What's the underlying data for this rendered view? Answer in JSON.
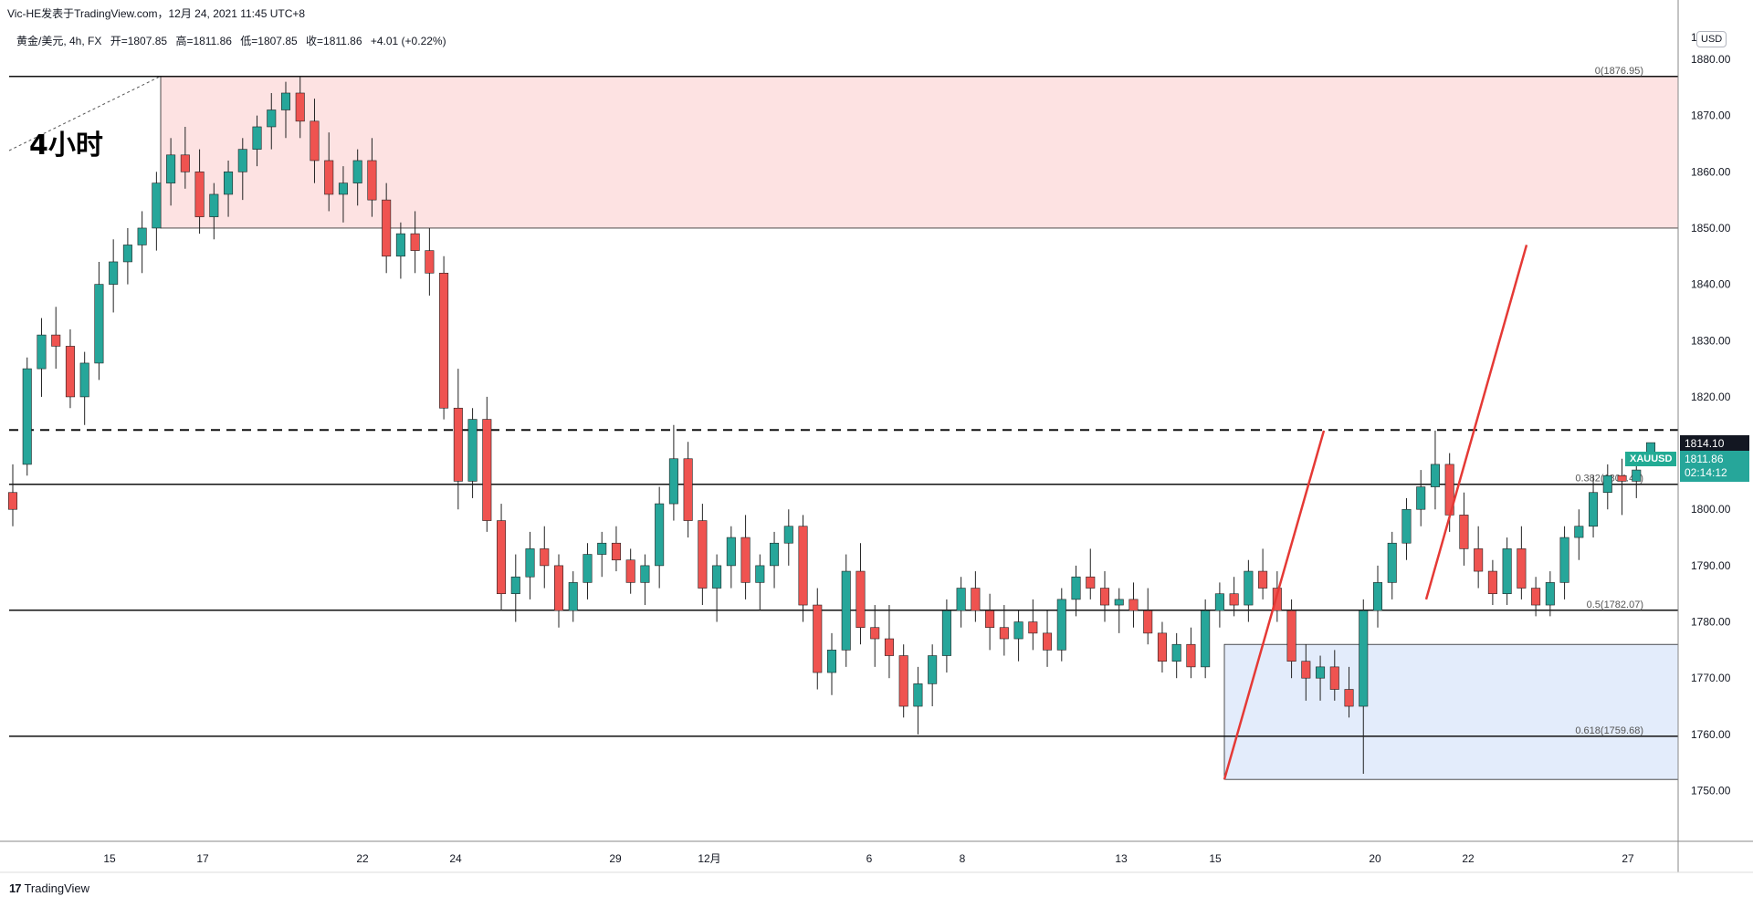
{
  "header": {
    "attribution": "Vic-HE发表于TradingView.com，12月 24, 2021 11:45 UTC+8"
  },
  "legend": {
    "symbol": "黄金/美元, 4h, FX",
    "open": "开=1807.85",
    "high": "高=1811.86",
    "low": "低=1807.85",
    "close": "收=1811.86",
    "change": "+4.01 (+0.22%)"
  },
  "annotation": {
    "timeframe": "4小时"
  },
  "axis": {
    "currency": "USD",
    "top_partial": "18",
    "price_ticks": [
      "1880.00",
      "1870.00",
      "1860.00",
      "1850.00",
      "1840.00",
      "1830.00",
      "1820.00",
      "1810.00",
      "1800.00",
      "1790.00",
      "1780.00",
      "1770.00",
      "1760.00",
      "1750.00"
    ],
    "date_ticks": [
      "15",
      "17",
      "22",
      "24",
      "29",
      "12月",
      "6",
      "8",
      "13",
      "15",
      "20",
      "22",
      "27"
    ]
  },
  "price_tags": {
    "symbol": "XAUUSD",
    "last_price": "1811.86",
    "countdown": "02:14:12",
    "level": "1814.10"
  },
  "footer": {
    "brand": "TradingView"
  },
  "chart_data": {
    "type": "candlestick",
    "symbol": "XAUUSD",
    "interval": "4h",
    "ylim": [
      1741,
      1886
    ],
    "candles": [
      [
        1803,
        1808,
        1797,
        1800
      ],
      [
        1808,
        1827,
        1806,
        1825
      ],
      [
        1825,
        1834,
        1820,
        1831
      ],
      [
        1831,
        1836,
        1825,
        1829
      ],
      [
        1829,
        1832,
        1818,
        1820
      ],
      [
        1820,
        1828,
        1815,
        1826
      ],
      [
        1826,
        1844,
        1823,
        1840
      ],
      [
        1840,
        1848,
        1835,
        1844
      ],
      [
        1844,
        1850,
        1840,
        1847
      ],
      [
        1847,
        1853,
        1842,
        1850
      ],
      [
        1850,
        1860,
        1846,
        1858
      ],
      [
        1858,
        1866,
        1854,
        1863
      ],
      [
        1863,
        1868,
        1857,
        1860
      ],
      [
        1860,
        1864,
        1849,
        1852
      ],
      [
        1852,
        1858,
        1848,
        1856
      ],
      [
        1856,
        1862,
        1852,
        1860
      ],
      [
        1860,
        1866,
        1855,
        1864
      ],
      [
        1864,
        1870,
        1861,
        1868
      ],
      [
        1868,
        1874,
        1864,
        1871
      ],
      [
        1871,
        1876,
        1866,
        1874
      ],
      [
        1874,
        1877,
        1866,
        1869
      ],
      [
        1869,
        1873,
        1858,
        1862
      ],
      [
        1862,
        1867,
        1853,
        1856
      ],
      [
        1856,
        1861,
        1851,
        1858
      ],
      [
        1858,
        1864,
        1854,
        1862
      ],
      [
        1862,
        1866,
        1852,
        1855
      ],
      [
        1855,
        1858,
        1842,
        1845
      ],
      [
        1845,
        1851,
        1841,
        1849
      ],
      [
        1849,
        1853,
        1842,
        1846
      ],
      [
        1846,
        1850,
        1838,
        1842
      ],
      [
        1842,
        1845,
        1816,
        1818
      ],
      [
        1818,
        1825,
        1800,
        1805
      ],
      [
        1805,
        1818,
        1802,
        1816
      ],
      [
        1816,
        1820,
        1796,
        1798
      ],
      [
        1798,
        1801,
        1782,
        1785
      ],
      [
        1785,
        1792,
        1780,
        1788
      ],
      [
        1788,
        1796,
        1784,
        1793
      ],
      [
        1793,
        1797,
        1786,
        1790
      ],
      [
        1790,
        1792,
        1779,
        1782
      ],
      [
        1782,
        1789,
        1780,
        1787
      ],
      [
        1787,
        1794,
        1784,
        1792
      ],
      [
        1792,
        1796,
        1788,
        1794
      ],
      [
        1794,
        1797,
        1789,
        1791
      ],
      [
        1791,
        1793,
        1785,
        1787
      ],
      [
        1787,
        1792,
        1783,
        1790
      ],
      [
        1790,
        1804,
        1786,
        1801
      ],
      [
        1801,
        1815,
        1798,
        1809
      ],
      [
        1809,
        1812,
        1795,
        1798
      ],
      [
        1798,
        1801,
        1783,
        1786
      ],
      [
        1786,
        1792,
        1780,
        1790
      ],
      [
        1790,
        1797,
        1786,
        1795
      ],
      [
        1795,
        1799,
        1784,
        1787
      ],
      [
        1787,
        1792,
        1782,
        1790
      ],
      [
        1790,
        1796,
        1786,
        1794
      ],
      [
        1794,
        1800,
        1790,
        1797
      ],
      [
        1797,
        1799,
        1780,
        1783
      ],
      [
        1783,
        1786,
        1768,
        1771
      ],
      [
        1771,
        1778,
        1767,
        1775
      ],
      [
        1775,
        1792,
        1772,
        1789
      ],
      [
        1789,
        1794,
        1776,
        1779
      ],
      [
        1779,
        1783,
        1772,
        1777
      ],
      [
        1777,
        1783,
        1770,
        1774
      ],
      [
        1774,
        1776,
        1763,
        1765
      ],
      [
        1765,
        1772,
        1760,
        1769
      ],
      [
        1769,
        1776,
        1765,
        1774
      ],
      [
        1774,
        1784,
        1771,
        1782
      ],
      [
        1782,
        1788,
        1779,
        1786
      ],
      [
        1786,
        1789,
        1780,
        1782
      ],
      [
        1782,
        1785,
        1775,
        1779
      ],
      [
        1779,
        1783,
        1774,
        1777
      ],
      [
        1777,
        1782,
        1773,
        1780
      ],
      [
        1780,
        1784,
        1775,
        1778
      ],
      [
        1778,
        1782,
        1772,
        1775
      ],
      [
        1775,
        1786,
        1773,
        1784
      ],
      [
        1784,
        1790,
        1781,
        1788
      ],
      [
        1788,
        1793,
        1784,
        1786
      ],
      [
        1786,
        1789,
        1780,
        1783
      ],
      [
        1783,
        1786,
        1778,
        1784
      ],
      [
        1784,
        1787,
        1779,
        1782
      ],
      [
        1782,
        1786,
        1776,
        1778
      ],
      [
        1778,
        1780,
        1771,
        1773
      ],
      [
        1773,
        1778,
        1770,
        1776
      ],
      [
        1776,
        1779,
        1770,
        1772
      ],
      [
        1772,
        1784,
        1770,
        1782
      ],
      [
        1782,
        1787,
        1779,
        1785
      ],
      [
        1785,
        1788,
        1781,
        1783
      ],
      [
        1783,
        1791,
        1780,
        1789
      ],
      [
        1789,
        1793,
        1784,
        1786
      ],
      [
        1786,
        1789,
        1780,
        1782
      ],
      [
        1782,
        1784,
        1770,
        1773
      ],
      [
        1773,
        1776,
        1766,
        1770
      ],
      [
        1770,
        1774,
        1766,
        1772
      ],
      [
        1772,
        1775,
        1766,
        1768
      ],
      [
        1768,
        1772,
        1763,
        1765
      ],
      [
        1765,
        1784,
        1753,
        1782
      ],
      [
        1782,
        1790,
        1779,
        1787
      ],
      [
        1787,
        1796,
        1784,
        1794
      ],
      [
        1794,
        1802,
        1791,
        1800
      ],
      [
        1800,
        1807,
        1797,
        1804
      ],
      [
        1804,
        1814,
        1800,
        1808
      ],
      [
        1808,
        1810,
        1796,
        1799
      ],
      [
        1799,
        1803,
        1790,
        1793
      ],
      [
        1793,
        1797,
        1786,
        1789
      ],
      [
        1789,
        1791,
        1783,
        1785
      ],
      [
        1785,
        1795,
        1783,
        1793
      ],
      [
        1793,
        1797,
        1784,
        1786
      ],
      [
        1786,
        1788,
        1781,
        1783
      ],
      [
        1783,
        1789,
        1781,
        1787
      ],
      [
        1787,
        1797,
        1784,
        1795
      ],
      [
        1795,
        1800,
        1791,
        1797
      ],
      [
        1797,
        1806,
        1795,
        1803
      ],
      [
        1803,
        1808,
        1800,
        1806
      ],
      [
        1806,
        1809,
        1799,
        1805
      ],
      [
        1805,
        1808,
        1802,
        1807
      ],
      [
        1807.85,
        1811.86,
        1807.85,
        1811.86
      ]
    ],
    "horizontal_levels": [
      {
        "price": 1876.95,
        "label": "0(1876.95)"
      },
      {
        "price": 1804.46,
        "label": "0.382(1804.46)"
      },
      {
        "price": 1782.07,
        "label": "0.5(1782.07)"
      },
      {
        "price": 1759.68,
        "label": "0.618(1759.68)"
      },
      {
        "price": 1814.1,
        "dashed": true
      }
    ],
    "zones": [
      {
        "from": 1850,
        "to": 1877,
        "color": "#fde2e2"
      },
      {
        "from": 1752,
        "to": 1776,
        "color": "#e3ecfb"
      }
    ],
    "trend_lines_color": "#e53935",
    "up_color": "#26a69a",
    "down_color": "#ef5350"
  }
}
